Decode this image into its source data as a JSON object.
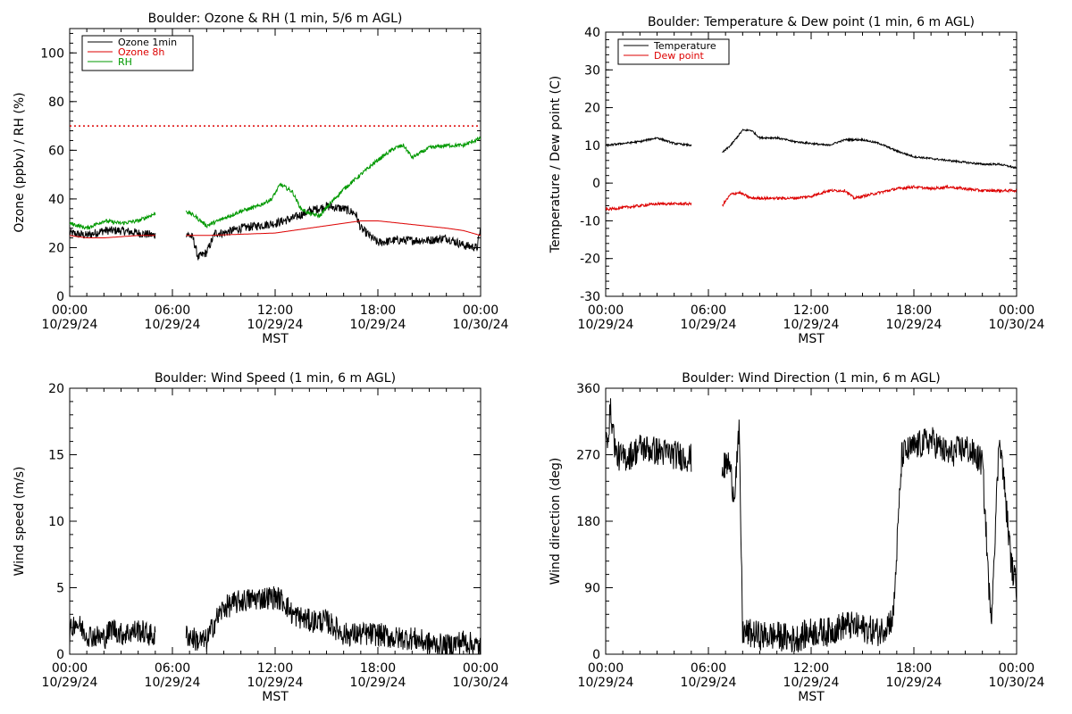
{
  "colors": {
    "black": "#000000",
    "red": "#dd0000",
    "green": "#009900",
    "bg": "#ffffff"
  },
  "chart_data": [
    {
      "type": "line",
      "title": "Boulder: Ozone & RH (1 min, 5/6 m AGL)",
      "ylabel": "Ozone (ppbv) / RH (%)",
      "xlabel": "MST",
      "ylim": [
        0,
        110
      ],
      "yticks": [
        0,
        20,
        40,
        60,
        80,
        100
      ],
      "xlim": [
        0,
        24
      ],
      "xticks": [
        {
          "t": "00:00",
          "d": "10/29/24"
        },
        {
          "t": "06:00",
          "d": "10/29/24"
        },
        {
          "t": "12:00",
          "d": "10/29/24"
        },
        {
          "t": "18:00",
          "d": "10/29/24"
        },
        {
          "t": "00:00",
          "d": "10/30/24"
        }
      ],
      "reference_line": {
        "y": 70,
        "style": "dotted",
        "color": "#dd0000"
      },
      "legend": {
        "placement": "top-left",
        "entries": [
          {
            "name": "Ozone 1min",
            "color": "#000000"
          },
          {
            "name": "Ozone 8h",
            "color": "#dd0000"
          },
          {
            "name": "RH",
            "color": "#009900"
          }
        ]
      },
      "series": [
        {
          "name": "Ozone 1min",
          "color": "#000000",
          "noise": 1.8,
          "segments": [
            [
              [
                0,
                26
              ],
              [
                1,
                25
              ],
              [
                2,
                27
              ],
              [
                3,
                27
              ],
              [
                4,
                26
              ],
              [
                5,
                25
              ]
            ],
            [
              [
                6.8,
                26
              ],
              [
                7.2,
                24
              ],
              [
                7.5,
                16
              ],
              [
                8,
                18
              ],
              [
                8.5,
                26
              ],
              [
                9,
                26
              ],
              [
                10,
                28
              ],
              [
                11,
                29
              ],
              [
                12,
                30
              ],
              [
                13,
                32
              ],
              [
                14,
                35
              ],
              [
                15,
                37
              ],
              [
                16,
                36
              ],
              [
                16.7,
                34
              ],
              [
                17,
                28
              ],
              [
                18,
                22
              ],
              [
                19,
                23
              ],
              [
                20,
                23
              ],
              [
                21,
                23
              ],
              [
                22,
                24
              ],
              [
                23,
                21
              ],
              [
                23.8,
                20
              ],
              [
                24,
                28
              ]
            ]
          ]
        },
        {
          "name": "Ozone 8h",
          "color": "#dd0000",
          "noise": 0,
          "segments": [
            [
              [
                0,
                25
              ],
              [
                1,
                24
              ],
              [
                2,
                24
              ],
              [
                3,
                24.5
              ],
              [
                4,
                25
              ],
              [
                5,
                25
              ]
            ],
            [
              [
                6.8,
                25
              ],
              [
                8,
                25
              ],
              [
                10,
                25.5
              ],
              [
                12,
                26
              ],
              [
                14,
                28
              ],
              [
                16,
                30
              ],
              [
                17,
                31
              ],
              [
                18,
                31
              ],
              [
                20,
                29.5
              ],
              [
                22,
                28
              ],
              [
                23,
                27
              ],
              [
                24,
                25
              ]
            ]
          ]
        },
        {
          "name": "RH",
          "color": "#009900",
          "noise": 0.8,
          "segments": [
            [
              [
                0,
                30
              ],
              [
                1,
                28
              ],
              [
                2,
                31
              ],
              [
                3,
                30
              ],
              [
                4,
                31
              ],
              [
                5,
                34
              ]
            ],
            [
              [
                6.8,
                35
              ],
              [
                7.3,
                33
              ],
              [
                8,
                29
              ],
              [
                9,
                32
              ],
              [
                10,
                35
              ],
              [
                11,
                37
              ],
              [
                11.8,
                40
              ],
              [
                12.3,
                46
              ],
              [
                13,
                43
              ],
              [
                13.5,
                36
              ],
              [
                14,
                34
              ],
              [
                14.6,
                33
              ],
              [
                15.2,
                38
              ],
              [
                16,
                44
              ],
              [
                17,
                50
              ],
              [
                18,
                56
              ],
              [
                19,
                61
              ],
              [
                19.5,
                62
              ],
              [
                20,
                57
              ],
              [
                21,
                61
              ],
              [
                22,
                62
              ],
              [
                23,
                62
              ],
              [
                24,
                65
              ]
            ]
          ]
        }
      ]
    },
    {
      "type": "line",
      "title": "Boulder: Temperature & Dew point (1 min, 6 m AGL)",
      "ylabel": "Temperature / Dew point (C)",
      "xlabel": "MST",
      "ylim": [
        -30,
        40
      ],
      "yticks": [
        -30,
        -20,
        -10,
        0,
        10,
        20,
        30,
        40
      ],
      "xlim": [
        0,
        24
      ],
      "xticks": [
        {
          "t": "00:00",
          "d": "10/29/24"
        },
        {
          "t": "06:00",
          "d": "10/29/24"
        },
        {
          "t": "12:00",
          "d": "10/29/24"
        },
        {
          "t": "18:00",
          "d": "10/29/24"
        },
        {
          "t": "00:00",
          "d": "10/30/24"
        }
      ],
      "legend": {
        "placement": "top-left",
        "entries": [
          {
            "name": "Temperature",
            "color": "#000000"
          },
          {
            "name": "Dew point",
            "color": "#dd0000"
          }
        ]
      },
      "series": [
        {
          "name": "Temperature",
          "color": "#000000",
          "noise": 0.25,
          "segments": [
            [
              [
                0,
                10
              ],
              [
                1,
                10.5
              ],
              [
                2,
                11
              ],
              [
                3,
                12
              ],
              [
                4,
                10.5
              ],
              [
                5,
                10
              ]
            ],
            [
              [
                6.8,
                8
              ],
              [
                7.3,
                10
              ],
              [
                8,
                14
              ],
              [
                8.5,
                14
              ],
              [
                9,
                12
              ],
              [
                10,
                12
              ],
              [
                11,
                11
              ],
              [
                12,
                10.5
              ],
              [
                13,
                10
              ],
              [
                14,
                11.5
              ],
              [
                15,
                11.5
              ],
              [
                16,
                10.5
              ],
              [
                17,
                8.5
              ],
              [
                18,
                7
              ],
              [
                19,
                6.5
              ],
              [
                20,
                6
              ],
              [
                21,
                5.5
              ],
              [
                22,
                5
              ],
              [
                23,
                5
              ],
              [
                24,
                4
              ]
            ]
          ]
        },
        {
          "name": "Dew point",
          "color": "#dd0000",
          "noise": 0.35,
          "segments": [
            [
              [
                0,
                -7
              ],
              [
                1,
                -6.5
              ],
              [
                2,
                -6
              ],
              [
                3,
                -5.5
              ],
              [
                4,
                -5.5
              ],
              [
                5,
                -5.5
              ]
            ],
            [
              [
                6.8,
                -6
              ],
              [
                7.3,
                -3
              ],
              [
                7.8,
                -2.5
              ],
              [
                8.5,
                -4
              ],
              [
                10,
                -4
              ],
              [
                11,
                -4
              ],
              [
                12,
                -3.5
              ],
              [
                13,
                -2
              ],
              [
                14,
                -2
              ],
              [
                14.5,
                -4
              ],
              [
                15,
                -3.5
              ],
              [
                16,
                -2.5
              ],
              [
                17,
                -1.5
              ],
              [
                18,
                -1
              ],
              [
                19,
                -1.5
              ],
              [
                20,
                -1
              ],
              [
                21,
                -1.5
              ],
              [
                22,
                -2
              ],
              [
                23,
                -2
              ],
              [
                24,
                -2
              ]
            ]
          ]
        }
      ]
    },
    {
      "type": "line",
      "title": "Boulder: Wind Speed (1 min, 6 m AGL)",
      "ylabel": "Wind speed (m/s)",
      "xlabel": "MST",
      "ylim": [
        0,
        20
      ],
      "yticks": [
        0,
        5,
        10,
        15,
        20
      ],
      "xlim": [
        0,
        24
      ],
      "xticks": [
        {
          "t": "00:00",
          "d": "10/29/24"
        },
        {
          "t": "06:00",
          "d": "10/29/24"
        },
        {
          "t": "12:00",
          "d": "10/29/24"
        },
        {
          "t": "18:00",
          "d": "10/29/24"
        },
        {
          "t": "00:00",
          "d": "10/30/24"
        }
      ],
      "series": [
        {
          "name": "",
          "color": "#000000",
          "noise": 0.9,
          "floor": 0,
          "segments": [
            [
              [
                0,
                1.5
              ],
              [
                0.3,
                2.5
              ],
              [
                1,
                1.5
              ],
              [
                2,
                1.2
              ],
              [
                2.5,
                2
              ],
              [
                3,
                1.5
              ],
              [
                4,
                1.8
              ],
              [
                5,
                1.3
              ]
            ],
            [
              [
                6.8,
                1.5
              ],
              [
                7.5,
                1
              ],
              [
                8,
                1
              ],
              [
                8.5,
                2.5
              ],
              [
                9,
                3.5
              ],
              [
                10,
                4
              ],
              [
                11,
                4.2
              ],
              [
                12,
                4.3
              ],
              [
                12.5,
                4
              ],
              [
                13,
                3
              ],
              [
                14,
                2.5
              ],
              [
                15,
                2.5
              ],
              [
                16,
                1.5
              ],
              [
                17,
                1.5
              ],
              [
                18,
                1.5
              ],
              [
                19,
                1.2
              ],
              [
                20,
                1.2
              ],
              [
                21,
                0.8
              ],
              [
                22,
                0.6
              ],
              [
                23,
                1
              ],
              [
                24,
                0.5
              ]
            ]
          ]
        }
      ]
    },
    {
      "type": "line",
      "title": "Boulder: Wind Direction (1 min, 6 m AGL)",
      "ylabel": "Wind direction (deg)",
      "xlabel": "MST",
      "ylim": [
        0,
        360
      ],
      "yticks": [
        0,
        90,
        180,
        270,
        360
      ],
      "xlim": [
        0,
        24
      ],
      "xticks": [
        {
          "t": "00:00",
          "d": "10/29/24"
        },
        {
          "t": "06:00",
          "d": "10/29/24"
        },
        {
          "t": "12:00",
          "d": "10/29/24"
        },
        {
          "t": "18:00",
          "d": "10/29/24"
        },
        {
          "t": "00:00",
          "d": "10/30/24"
        }
      ],
      "series": [
        {
          "name": "",
          "color": "#000000",
          "noise": 20,
          "floor": 0,
          "ceil": 360,
          "segments": [
            [
              [
                0,
                280
              ],
              [
                0.3,
                330
              ],
              [
                0.6,
                270
              ],
              [
                1,
                265
              ],
              [
                1.5,
                270
              ],
              [
                2,
                280
              ],
              [
                3,
                275
              ],
              [
                4,
                270
              ],
              [
                5,
                265
              ]
            ],
            [
              [
                6.8,
                250
              ],
              [
                7.2,
                260
              ],
              [
                7.5,
                215
              ],
              [
                7.8,
                300
              ],
              [
                8,
                30
              ],
              [
                9,
                25
              ],
              [
                10,
                25
              ],
              [
                11,
                20
              ],
              [
                12,
                30
              ],
              [
                13,
                30
              ],
              [
                14,
                40
              ],
              [
                15,
                35
              ],
              [
                16,
                30
              ],
              [
                16.8,
                50
              ],
              [
                17.3,
                270
              ],
              [
                18,
                280
              ],
              [
                19,
                290
              ],
              [
                20,
                270
              ],
              [
                21,
                280
              ],
              [
                22,
                260
              ],
              [
                22.5,
                40
              ],
              [
                23,
                300
              ],
              [
                23.7,
                120
              ],
              [
                24,
                90
              ]
            ]
          ]
        }
      ]
    }
  ]
}
